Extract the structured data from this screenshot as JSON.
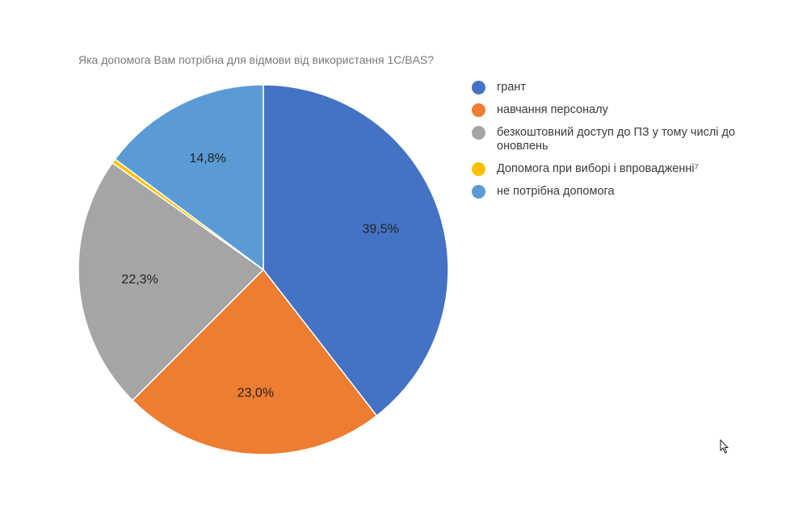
{
  "chart_data": {
    "type": "pie",
    "title": "Яка допомога Вам потрібна для відмови від використання 1С/BAS?",
    "slices": [
      {
        "label": "грант",
        "value": 39.5,
        "display": "39,5%",
        "color": "#4472C4"
      },
      {
        "label": "навчання персоналу",
        "value": 23.0,
        "display": "23,0%",
        "color": "#ED7D31"
      },
      {
        "label": "безкоштовний доступ до ПЗ у тому числі до оновлень",
        "value": 22.3,
        "display": "22,3%",
        "color": "#A5A5A5"
      },
      {
        "label": "Допомога при виборі і впровадженні⁷",
        "value": 0.4,
        "display": "",
        "color": "#FFC000"
      },
      {
        "label": "не потрібна допомога",
        "value": 14.8,
        "display": "14,8%",
        "color": "#5B9BD5"
      }
    ],
    "legend_position": "right"
  }
}
